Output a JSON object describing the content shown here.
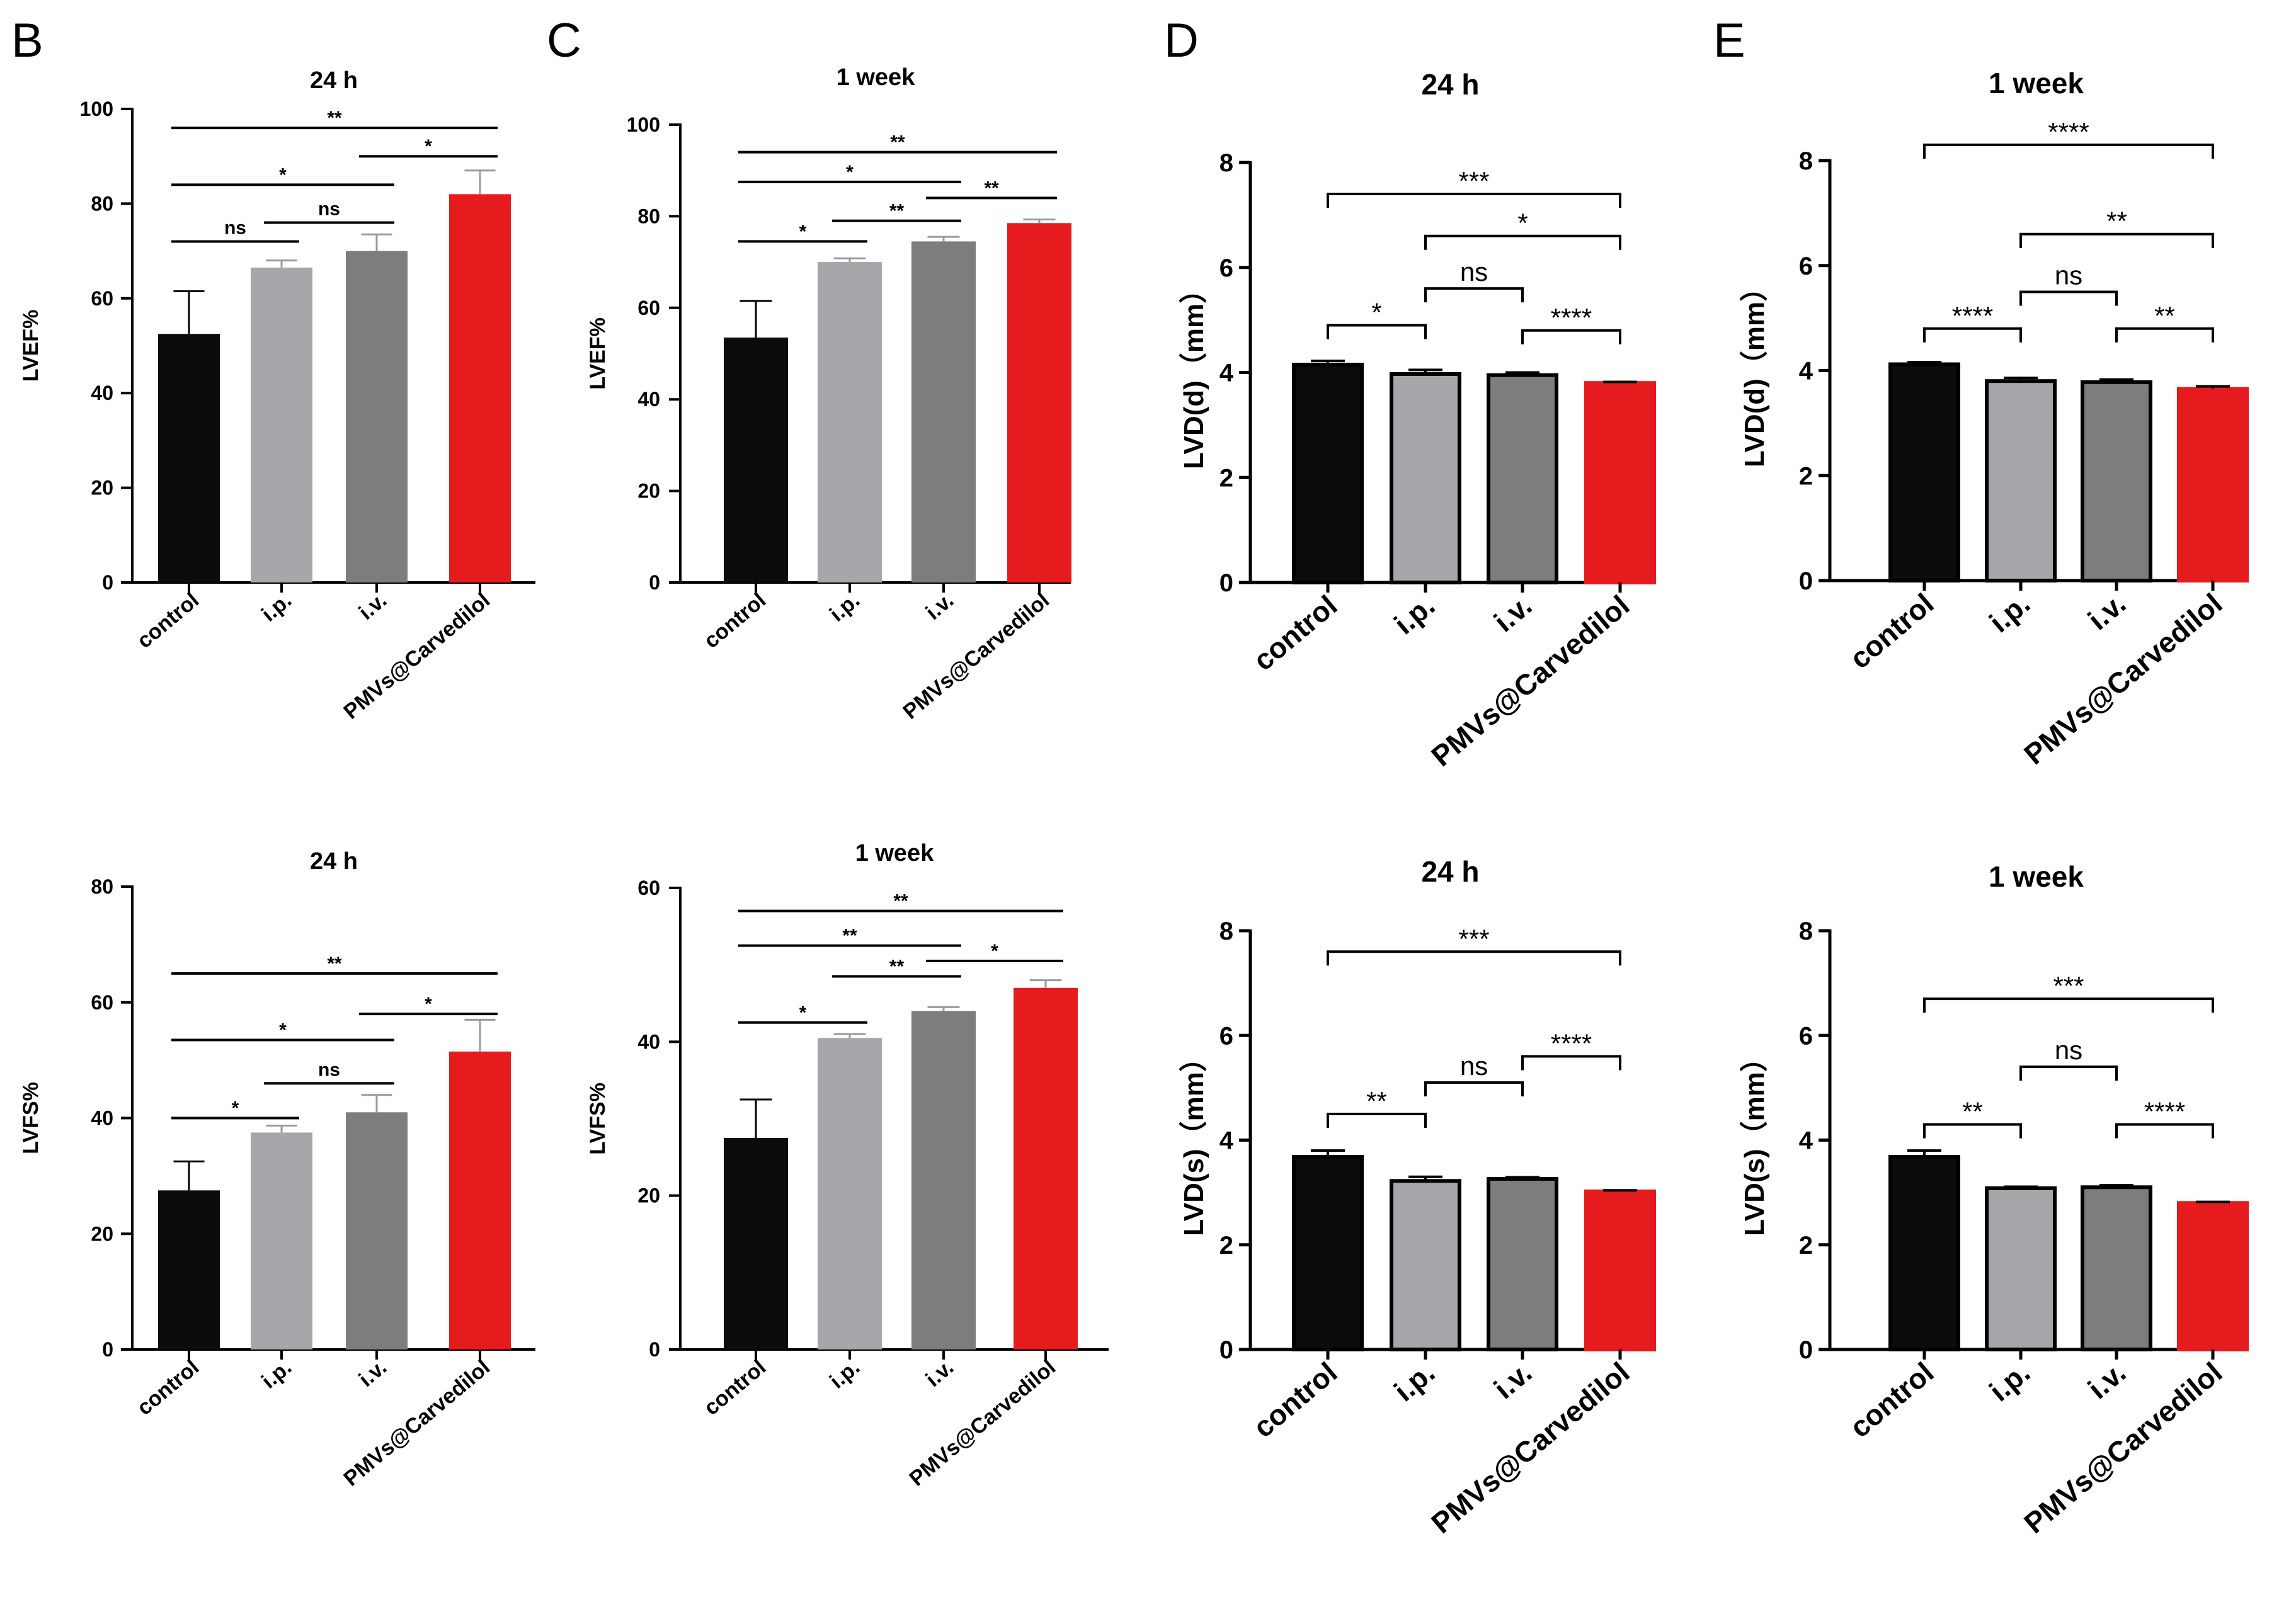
{
  "figure": {
    "colors": {
      "control": "#0d0b0b",
      "ip": "#a7a6ab",
      "iv": "#7d7d7d",
      "pmvs": "#e61b1d",
      "error_gray": "#9a9a9a"
    },
    "panel_labels": [
      "B",
      "C",
      "D",
      "E"
    ]
  },
  "chart_data": [
    {
      "id": "B-top",
      "type": "bar",
      "title": "24 h",
      "ylabel": "LVEF%",
      "categories": [
        "control",
        "i.p.",
        "i.v.",
        "PMVs@Carvedilol"
      ],
      "values": [
        52.5,
        66.5,
        70,
        82
      ],
      "errors": [
        9,
        1.5,
        3.5,
        5
      ],
      "ylim": [
        0,
        100
      ],
      "yticks": [
        0,
        20,
        40,
        60,
        80,
        100
      ],
      "comparisons": [
        {
          "from": 0,
          "to": 3,
          "y": 96,
          "label": "**"
        },
        {
          "from": 0,
          "to": 2,
          "y": 84,
          "label": "*"
        },
        {
          "from": 2,
          "to": 3,
          "y": 90,
          "label": "*"
        },
        {
          "from": 0,
          "to": 1,
          "y": 72,
          "label": "ns"
        },
        {
          "from": 1,
          "to": 2,
          "y": 76,
          "label": "ns"
        }
      ]
    },
    {
      "id": "C-top",
      "type": "bar",
      "title": "1 week",
      "ylabel": "LVEF%",
      "categories": [
        "control",
        "i.p.",
        "i.v.",
        "PMVs@Carvedilol"
      ],
      "values": [
        53.5,
        70,
        74.5,
        78.5
      ],
      "errors": [
        8,
        0.8,
        1,
        0.8
      ],
      "ylim": [
        0,
        100
      ],
      "yticks": [
        0,
        20,
        40,
        60,
        80,
        100
      ],
      "comparisons": [
        {
          "from": 0,
          "to": 3,
          "y": 94,
          "label": "**"
        },
        {
          "from": 0,
          "to": 2,
          "y": 87.5,
          "label": "*"
        },
        {
          "from": 2,
          "to": 3,
          "y": 84,
          "label": "**"
        },
        {
          "from": 1,
          "to": 2,
          "y": 79,
          "label": "**"
        },
        {
          "from": 0,
          "to": 1,
          "y": 74.5,
          "label": "*"
        }
      ]
    },
    {
      "id": "D-top",
      "type": "bar",
      "title": "24 h",
      "ylabel": "LVD(d)（mm）",
      "categories": [
        "control",
        "i.p.",
        "i.v.",
        "PMVs@Carvedilol"
      ],
      "values": [
        4.15,
        3.97,
        3.95,
        3.8
      ],
      "errors": [
        0.07,
        0.08,
        0.05,
        0.02
      ],
      "ylim": [
        0,
        8
      ],
      "yticks": [
        0,
        2,
        4,
        6,
        8
      ],
      "comparisons": [
        {
          "from": 0,
          "to": 3,
          "y": 7.4,
          "label": "***",
          "bracket": true
        },
        {
          "from": 1,
          "to": 3,
          "y": 6.6,
          "label": "*",
          "bracket": true
        },
        {
          "from": 1,
          "to": 2,
          "y": 5.6,
          "label": "ns",
          "bracket": true
        },
        {
          "from": 2,
          "to": 3,
          "y": 4.8,
          "label": "****",
          "bracket": true
        },
        {
          "from": 0,
          "to": 1,
          "y": 4.9,
          "label": "*",
          "bracket": true
        }
      ]
    },
    {
      "id": "E-top",
      "type": "bar",
      "title": "1 week",
      "ylabel": "LVD(d)（mm）",
      "categories": [
        "control",
        "i.p.",
        "i.v.",
        "PMVs@Carvedilol"
      ],
      "values": [
        4.12,
        3.8,
        3.78,
        3.65
      ],
      "errors": [
        0.04,
        0.06,
        0.05,
        0.05
      ],
      "ylim": [
        0,
        8
      ],
      "yticks": [
        0,
        2,
        4,
        6,
        8
      ],
      "comparisons": [
        {
          "from": 0,
          "to": 3,
          "y": 8.3,
          "label": "****",
          "bracket": true
        },
        {
          "from": 1,
          "to": 3,
          "y": 6.6,
          "label": "**",
          "bracket": true
        },
        {
          "from": 1,
          "to": 2,
          "y": 5.5,
          "label": "ns",
          "bracket": true
        },
        {
          "from": 2,
          "to": 3,
          "y": 4.8,
          "label": "**",
          "bracket": true
        },
        {
          "from": 0,
          "to": 1,
          "y": 4.8,
          "label": "****",
          "bracket": true
        }
      ]
    },
    {
      "id": "B-bottom",
      "type": "bar",
      "title": "24 h",
      "ylabel": "LVFS%",
      "categories": [
        "control",
        "i.p.",
        "i.v.",
        "PMVs@Carvedilol"
      ],
      "values": [
        27.5,
        37.5,
        41,
        51.5
      ],
      "errors": [
        5,
        1.2,
        3,
        5.5
      ],
      "ylim": [
        0,
        80
      ],
      "yticks": [
        0,
        20,
        40,
        60,
        80
      ],
      "comparisons": [
        {
          "from": 0,
          "to": 3,
          "y": 65,
          "label": "**"
        },
        {
          "from": 0,
          "to": 2,
          "y": 53.5,
          "label": "*"
        },
        {
          "from": 2,
          "to": 3,
          "y": 58,
          "label": "*"
        },
        {
          "from": 1,
          "to": 2,
          "y": 46,
          "label": "ns"
        },
        {
          "from": 0,
          "to": 1,
          "y": 40,
          "label": "*"
        }
      ]
    },
    {
      "id": "C-bottom",
      "type": "bar",
      "title": "1 week",
      "ylabel": "LVFS%",
      "categories": [
        "control",
        "i.p.",
        "i.v.",
        "PMVs@Carvedilol"
      ],
      "values": [
        27.5,
        40.5,
        44,
        47
      ],
      "errors": [
        5,
        0.5,
        0.5,
        1
      ],
      "ylim": [
        0,
        60
      ],
      "yticks": [
        0,
        20,
        40,
        60
      ],
      "comparisons": [
        {
          "from": 0,
          "to": 3,
          "y": 57,
          "label": "**"
        },
        {
          "from": 0,
          "to": 2,
          "y": 52.5,
          "label": "**"
        },
        {
          "from": 2,
          "to": 3,
          "y": 50.5,
          "label": "*"
        },
        {
          "from": 1,
          "to": 2,
          "y": 48.5,
          "label": "**"
        },
        {
          "from": 0,
          "to": 1,
          "y": 42.5,
          "label": "*"
        }
      ]
    },
    {
      "id": "D-bottom",
      "type": "bar",
      "title": "24 h",
      "ylabel": "LVD(s)（mm）",
      "categories": [
        "control",
        "i.p.",
        "i.v.",
        "PMVs@Carvedilol"
      ],
      "values": [
        3.68,
        3.22,
        3.26,
        3.02
      ],
      "errors": [
        0.12,
        0.08,
        0.03,
        0.02
      ],
      "ylim": [
        0,
        8
      ],
      "yticks": [
        0,
        2,
        4,
        6,
        8
      ],
      "comparisons": [
        {
          "from": 0,
          "to": 3,
          "y": 7.6,
          "label": "***",
          "bracket": true
        },
        {
          "from": 0,
          "to": 1,
          "y": 4.5,
          "label": "**",
          "bracket": true
        },
        {
          "from": 1,
          "to": 2,
          "y": 5.1,
          "label": "ns",
          "bracket": true
        },
        {
          "from": 2,
          "to": 3,
          "y": 5.6,
          "label": "****",
          "bracket": true
        }
      ]
    },
    {
      "id": "E-bottom",
      "type": "bar",
      "title": "1 week",
      "ylabel": "LVD(s)（mm）",
      "categories": [
        "control",
        "i.p.",
        "i.v.",
        "PMVs@Carvedilol"
      ],
      "values": [
        3.68,
        3.08,
        3.1,
        2.8
      ],
      "errors": [
        0.12,
        0.03,
        0.04,
        0.02
      ],
      "ylim": [
        0,
        8
      ],
      "yticks": [
        0,
        2,
        4,
        6,
        8
      ],
      "comparisons": [
        {
          "from": 0,
          "to": 3,
          "y": 6.7,
          "label": "***",
          "bracket": true
        },
        {
          "from": 0,
          "to": 1,
          "y": 4.3,
          "label": "**",
          "bracket": true
        },
        {
          "from": 1,
          "to": 2,
          "y": 5.4,
          "label": "ns",
          "bracket": true
        },
        {
          "from": 2,
          "to": 3,
          "y": 4.3,
          "label": "****",
          "bracket": true
        }
      ]
    }
  ]
}
